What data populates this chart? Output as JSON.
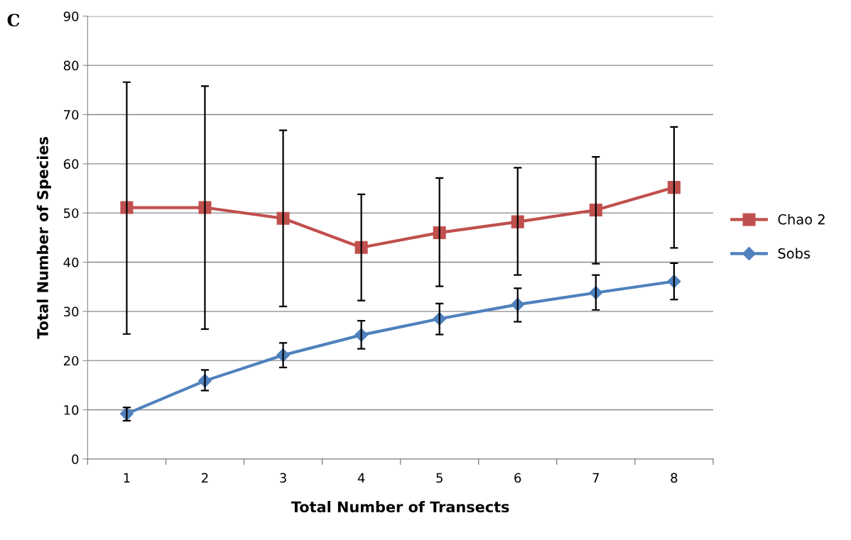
{
  "chart_data": {
    "type": "line",
    "xlabel": "Total Number of Transects",
    "ylabel": "Total Number of Species",
    "annotations": [
      "C"
    ],
    "categories": [
      "1",
      "2",
      "3",
      "4",
      "5",
      "6",
      "7",
      "8"
    ],
    "series": [
      {
        "name": "Chao 2",
        "color": "#c0504d",
        "marker": "square",
        "values": [
          51.1,
          51.1,
          48.9,
          43.0,
          46.0,
          48.2,
          50.6,
          55.2
        ],
        "errors": [
          [
            25.4,
            76.6
          ],
          [
            26.4,
            75.8
          ],
          [
            31.0,
            66.8
          ],
          [
            32.2,
            53.8
          ],
          [
            35.1,
            57.1
          ],
          [
            37.4,
            59.2
          ],
          [
            39.7,
            61.4
          ],
          [
            42.9,
            67.5
          ]
        ]
      },
      {
        "name": "Sobs",
        "color": "#4f81bd",
        "marker": "diamond",
        "values": [
          9.2,
          15.9,
          21.1,
          25.2,
          28.5,
          31.4,
          33.8,
          36.1
        ],
        "errors": [
          [
            7.8,
            10.5
          ],
          [
            13.9,
            18.1
          ],
          [
            18.6,
            23.6
          ],
          [
            22.4,
            28.1
          ],
          [
            25.3,
            31.6
          ],
          [
            27.9,
            34.7
          ],
          [
            30.3,
            37.4
          ],
          [
            32.4,
            39.8
          ]
        ]
      }
    ],
    "ylim": [
      0,
      90
    ],
    "yticks": [
      0,
      10,
      20,
      30,
      40,
      50,
      60,
      70,
      80,
      90
    ],
    "grid": "y",
    "legend": "right",
    "line_style": "solid"
  }
}
